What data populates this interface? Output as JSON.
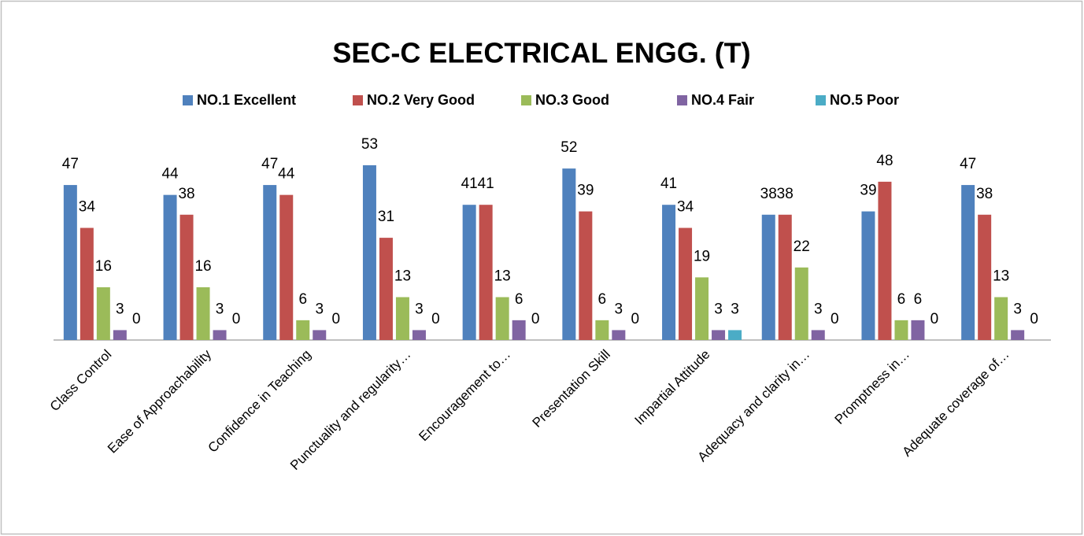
{
  "chart_data": {
    "type": "bar",
    "title": "SEC-C  ELECTRICAL ENGG. (T)",
    "categories": [
      "Class Control",
      "Ease of Approachability",
      "Confidence in Teaching",
      "Punctuality and regularity…",
      "Encouragement to…",
      "Presentation Skill",
      "Impartial Attitude",
      "Adequacy and clarity in…",
      "Promptness in…",
      "Adequate coverage of…"
    ],
    "series": [
      {
        "name": "NO.1 Excellent",
        "color": "#4f81bd",
        "values": [
          47,
          44,
          47,
          53,
          41,
          52,
          41,
          38,
          39,
          47
        ]
      },
      {
        "name": "NO.2 Very Good",
        "color": "#c0504d",
        "values": [
          34,
          38,
          44,
          31,
          41,
          39,
          34,
          38,
          48,
          38
        ]
      },
      {
        "name": "NO.3 Good",
        "color": "#9bbb59",
        "values": [
          16,
          16,
          6,
          13,
          13,
          6,
          19,
          22,
          6,
          13
        ]
      },
      {
        "name": "NO.4 Fair",
        "color": "#8064a2",
        "values": [
          3,
          3,
          3,
          3,
          6,
          3,
          3,
          3,
          6,
          3
        ]
      },
      {
        "name": "NO.5 Poor",
        "color": "#4bacc6",
        "values": [
          0,
          0,
          0,
          0,
          0,
          0,
          3,
          0,
          0,
          0
        ]
      }
    ],
    "legend": "top"
  }
}
